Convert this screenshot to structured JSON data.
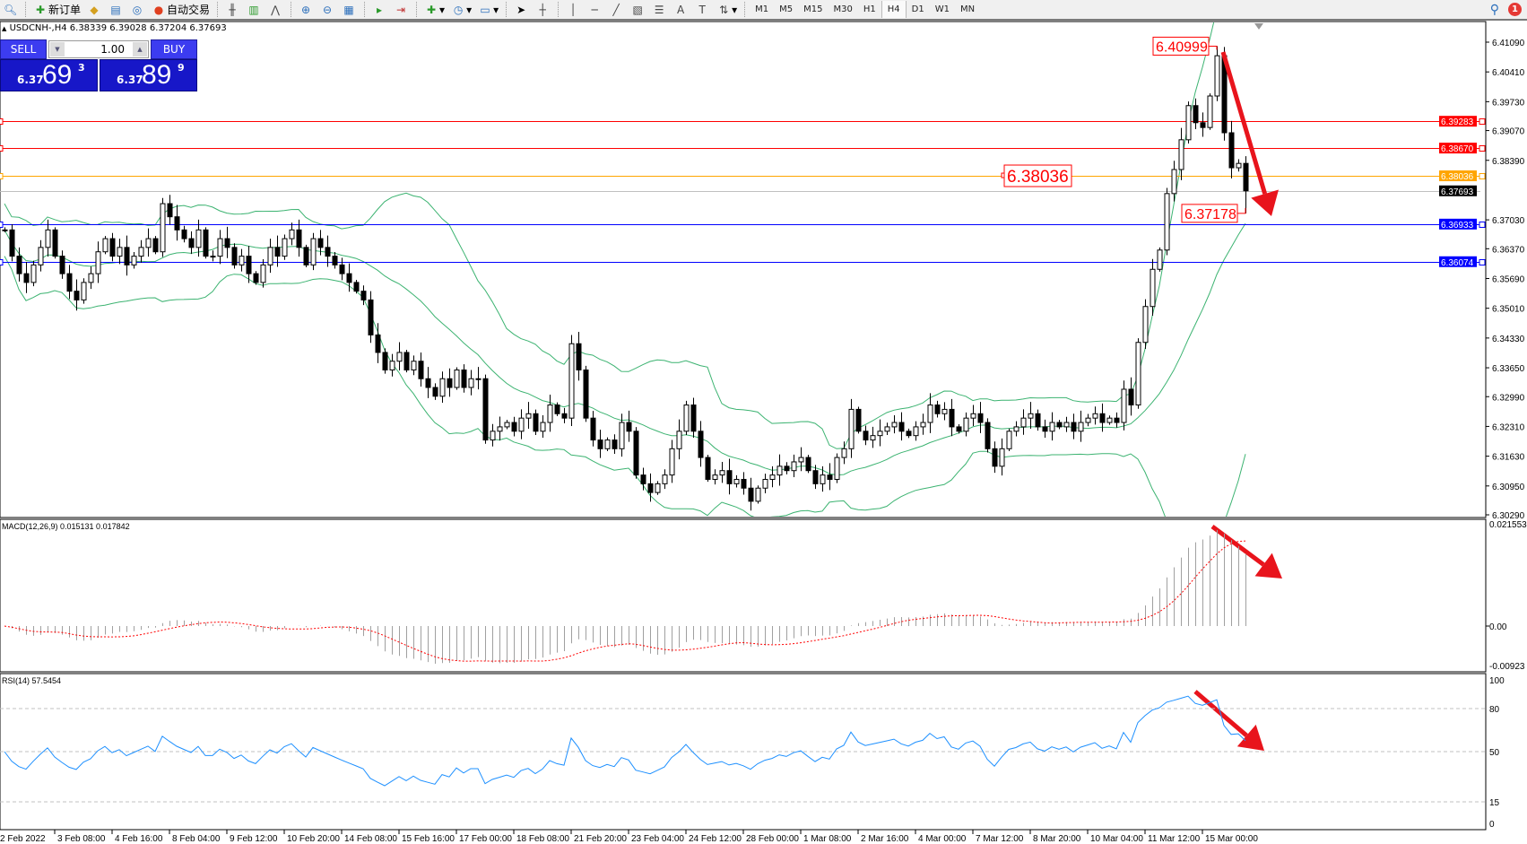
{
  "toolbar": {
    "new_order": "新订单",
    "auto_trading": "自动交易",
    "timeframes": [
      "M1",
      "M5",
      "M15",
      "M30",
      "H1",
      "H4",
      "D1",
      "W1",
      "MN"
    ],
    "active_timeframe": "H4",
    "text_tool": "A",
    "notification_count": "1"
  },
  "chart_header": {
    "symbol_line": "USDCNH-,H4  6.38339 6.39028 6.37204 6.37693"
  },
  "one_click": {
    "sell_label": "SELL",
    "buy_label": "BUY",
    "lot": "1.00",
    "sell_small": "6.37",
    "sell_big": "69",
    "sell_pip": "3",
    "buy_small": "6.37",
    "buy_big": "89",
    "buy_pip": "9"
  },
  "price_axis": [
    "6.41090",
    "6.40410",
    "6.39730",
    "6.39070",
    "6.38390",
    "6.37030",
    "6.36370",
    "6.35690",
    "6.35010",
    "6.34330",
    "6.33650",
    "6.32990",
    "6.32310",
    "6.31630",
    "6.30950",
    "6.30290"
  ],
  "horizontal_lines": [
    {
      "price": "6.39283",
      "color": "#ff0000",
      "label_bg": "#ff0000",
      "label_fg": "#ffffff"
    },
    {
      "price": "6.38670",
      "color": "#ff0000",
      "label_bg": "#ff0000",
      "label_fg": "#ffffff"
    },
    {
      "price": "6.38036",
      "color": "#ffa500",
      "label_bg": "#ffa500",
      "label_fg": "#ffffff"
    },
    {
      "price": "6.37693",
      "color": "#c0c0c0",
      "label_bg": "#000000",
      "label_fg": "#ffffff"
    },
    {
      "price": "6.36933",
      "color": "#0000ff",
      "label_bg": "#0000ff",
      "label_fg": "#ffffff"
    },
    {
      "price": "6.36074",
      "color": "#0000ff",
      "label_bg": "#0000ff",
      "label_fg": "#ffffff"
    }
  ],
  "annotations": {
    "high_label": "6.40999",
    "low_label": "6.37178",
    "level_label": "6.38036",
    "arrow_color": "#e8141c"
  },
  "macd": {
    "label": "MACD(12,26,9) 0.015131 0.017842",
    "axis": [
      "0.021553",
      "0.00",
      "-0.00923"
    ],
    "histogram_color": "#a0a0a0",
    "signal_color": "#ff0000"
  },
  "rsi": {
    "label": "RSI(14) 57.5454",
    "axis": [
      "100",
      "80",
      "50",
      "15",
      "0"
    ],
    "color": "#1e90ff"
  },
  "time_axis": [
    "2 Feb 2022",
    "3 Feb 08:00",
    "4 Feb 16:00",
    "8 Feb 04:00",
    "9 Feb 12:00",
    "10 Feb 20:00",
    "14 Feb 08:00",
    "15 Feb 16:00",
    "17 Feb 00:00",
    "18 Feb 08:00",
    "21 Feb 20:00",
    "23 Feb 04:00",
    "24 Feb 12:00",
    "28 Feb 00:00",
    "1 Mar 08:00",
    "2 Mar 16:00",
    "4 Mar 00:00",
    "7 Mar 12:00",
    "8 Mar 20:00",
    "10 Mar 04:00",
    "11 Mar 12:00",
    "15 Mar 00:00"
  ],
  "chart_data": {
    "type": "candlestick",
    "symbol": "USDCNH-",
    "timeframe": "H4",
    "ylim": [
      6.3029,
      6.4109
    ],
    "bands_color": "#3cb371",
    "closes": [
      6.368,
      6.362,
      6.358,
      6.356,
      6.36,
      6.364,
      6.368,
      6.362,
      6.358,
      6.354,
      6.352,
      6.356,
      6.358,
      6.363,
      6.366,
      6.362,
      6.364,
      6.36,
      6.362,
      6.364,
      6.366,
      6.363,
      6.374,
      6.371,
      6.368,
      6.366,
      6.364,
      6.368,
      6.362,
      6.362,
      6.366,
      6.364,
      6.36,
      6.362,
      6.358,
      6.356,
      6.36,
      6.364,
      6.362,
      6.366,
      6.368,
      6.364,
      6.36,
      6.366,
      6.364,
      6.362,
      6.36,
      6.358,
      6.356,
      6.354,
      6.352,
      6.344,
      6.34,
      6.336,
      6.338,
      6.34,
      6.336,
      6.338,
      6.334,
      6.332,
      6.33,
      6.334,
      6.332,
      6.336,
      6.332,
      6.334,
      6.334,
      6.32,
      6.322,
      6.323,
      6.324,
      6.322,
      6.325,
      6.326,
      6.322,
      6.324,
      6.328,
      6.326,
      6.325,
      6.342,
      6.336,
      6.325,
      6.32,
      6.318,
      6.32,
      6.318,
      6.324,
      6.322,
      6.312,
      6.31,
      6.308,
      6.31,
      6.312,
      6.318,
      6.322,
      6.328,
      6.322,
      6.316,
      6.311,
      6.312,
      6.313,
      6.31,
      6.311,
      6.309,
      6.306,
      6.309,
      6.311,
      6.312,
      6.314,
      6.313,
      6.315,
      6.316,
      6.313,
      6.31,
      6.312,
      6.311,
      6.316,
      6.318,
      6.327,
      6.322,
      6.32,
      6.321,
      6.322,
      6.323,
      6.324,
      6.322,
      6.321,
      6.323,
      6.324,
      6.328,
      6.326,
      6.327,
      6.323,
      6.322,
      6.325,
      6.326,
      6.324,
      6.318,
      6.314,
      6.318,
      6.322,
      6.323,
      6.325,
      6.326,
      6.323,
      6.322,
      6.324,
      6.323,
      6.324,
      6.322,
      6.324,
      6.325,
      6.326,
      6.324,
      6.325,
      6.324,
      6.3316,
      6.328,
      6.3423,
      6.3505,
      6.359,
      6.3634,
      6.3763,
      6.3818,
      6.3886,
      6.3964,
      6.3925,
      6.3914,
      6.3986,
      6.4078,
      6.3902,
      6.3822,
      6.3832,
      6.37693
    ]
  }
}
